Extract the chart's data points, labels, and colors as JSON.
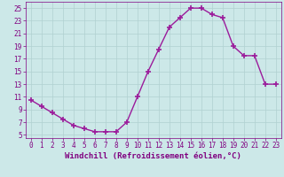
{
  "x": [
    0,
    1,
    2,
    3,
    4,
    5,
    6,
    7,
    8,
    9,
    10,
    11,
    12,
    13,
    14,
    15,
    16,
    17,
    18,
    19,
    20,
    21,
    22,
    23
  ],
  "y": [
    10.5,
    9.5,
    8.5,
    7.5,
    6.5,
    6.0,
    5.5,
    5.5,
    5.5,
    7.0,
    11.0,
    15.0,
    18.5,
    22.0,
    23.5,
    25.0,
    25.0,
    24.0,
    23.5,
    19.0,
    17.5,
    17.5,
    13.0,
    13.0
  ],
  "line_color": "#9b1b9b",
  "marker": "+",
  "markersize": 4,
  "linewidth": 1.0,
  "xlabel": "Windchill (Refroidissement éolien,°C)",
  "xlim": [
    -0.5,
    23.5
  ],
  "ylim": [
    4.5,
    26.0
  ],
  "yticks": [
    5,
    7,
    9,
    11,
    13,
    15,
    17,
    19,
    21,
    23,
    25
  ],
  "xticks": [
    0,
    1,
    2,
    3,
    4,
    5,
    6,
    7,
    8,
    9,
    10,
    11,
    12,
    13,
    14,
    15,
    16,
    17,
    18,
    19,
    20,
    21,
    22,
    23
  ],
  "background_color": "#cce8e8",
  "grid_color": "#b0d0d0",
  "tick_color": "#800080",
  "label_color": "#800080",
  "xlabel_fontsize": 6.5,
  "tick_fontsize": 5.5
}
